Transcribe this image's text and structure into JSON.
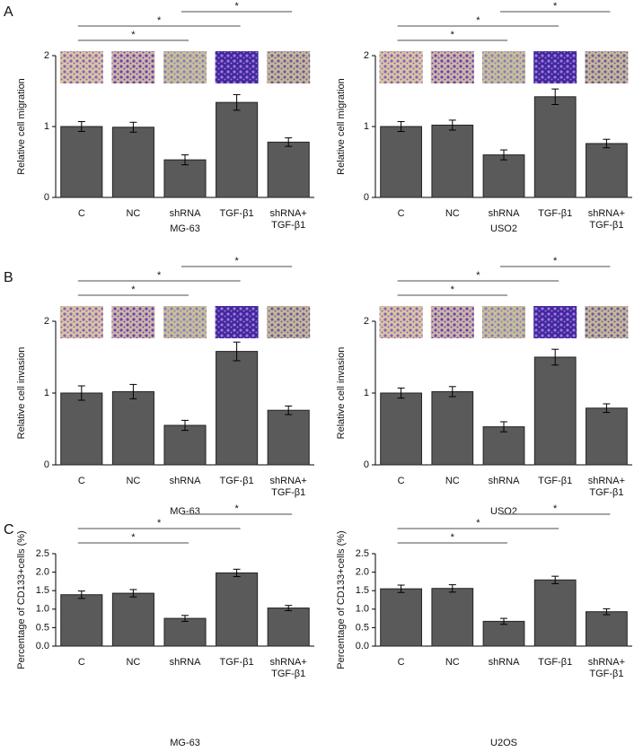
{
  "chart_data": [
    {
      "type": "bar",
      "panel_label": "A",
      "xlabel": "MG-63",
      "ylabel": "Relative cell migration",
      "categories": [
        "C",
        "NC",
        "shRNA",
        "TGF-β1",
        "shRNA+\nTGF-β1"
      ],
      "values": [
        1.0,
        0.99,
        0.53,
        1.34,
        0.78
      ],
      "errors": [
        0.07,
        0.07,
        0.07,
        0.11,
        0.06
      ],
      "color": "#5a5a5a",
      "ylim": [
        0,
        2
      ],
      "yticks": [
        0,
        1,
        2
      ],
      "annotations": [
        {
          "from": "C",
          "to": "shRNA",
          "label": "*"
        },
        {
          "from": "C",
          "to": "TGF-β1",
          "label": "*"
        },
        {
          "from": "shRNA",
          "to": "shRNA+\nTGF-β1",
          "label": "*"
        }
      ]
    },
    {
      "type": "bar",
      "xlabel": "USO2",
      "ylabel": "Relative cell migration",
      "categories": [
        "C",
        "NC",
        "shRNA",
        "TGF-β1",
        "shRNA+\nTGF-β1"
      ],
      "values": [
        1.0,
        1.02,
        0.6,
        1.42,
        0.76
      ],
      "errors": [
        0.07,
        0.07,
        0.07,
        0.11,
        0.06
      ],
      "color": "#5a5a5a",
      "ylim": [
        0,
        2
      ],
      "yticks": [
        0,
        1,
        2
      ],
      "annotations": [
        {
          "from": "C",
          "to": "shRNA",
          "label": "*"
        },
        {
          "from": "C",
          "to": "TGF-β1",
          "label": "*"
        },
        {
          "from": "shRNA",
          "to": "shRNA+\nTGF-β1",
          "label": "*"
        }
      ]
    },
    {
      "type": "bar",
      "panel_label": "B",
      "xlabel": "MG-63",
      "ylabel": "Relative cell invasion",
      "categories": [
        "C",
        "NC",
        "shRNA",
        "TGF-β1",
        "shRNA+\nTGF-β1"
      ],
      "values": [
        1.0,
        1.02,
        0.55,
        1.58,
        0.76
      ],
      "errors": [
        0.1,
        0.1,
        0.07,
        0.13,
        0.06
      ],
      "color": "#5a5a5a",
      "ylim": [
        0,
        2
      ],
      "yticks": [
        0,
        1,
        2
      ],
      "annotations": [
        {
          "from": "C",
          "to": "shRNA",
          "label": "*"
        },
        {
          "from": "C",
          "to": "TGF-β1",
          "label": "*"
        },
        {
          "from": "shRNA",
          "to": "shRNA+\nTGF-β1",
          "label": "*"
        }
      ]
    },
    {
      "type": "bar",
      "xlabel": "USO2",
      "ylabel": "Relative cell invasion",
      "categories": [
        "C",
        "NC",
        "shRNA",
        "TGF-β1",
        "shRNA+\nTGF-β1"
      ],
      "values": [
        1.0,
        1.02,
        0.53,
        1.5,
        0.79
      ],
      "errors": [
        0.07,
        0.07,
        0.07,
        0.11,
        0.06
      ],
      "color": "#5a5a5a",
      "ylim": [
        0,
        2
      ],
      "yticks": [
        0,
        1,
        2
      ],
      "annotations": [
        {
          "from": "C",
          "to": "shRNA",
          "label": "*"
        },
        {
          "from": "C",
          "to": "TGF-β1",
          "label": "*"
        },
        {
          "from": "shRNA",
          "to": "shRNA+\nTGF-β1",
          "label": "*"
        }
      ]
    },
    {
      "type": "bar",
      "panel_label": "C",
      "xlabel": "MG-63",
      "ylabel": "Percentage of CD133+cells (%)",
      "categories": [
        "C",
        "NC",
        "shRNA",
        "TGF-β1",
        "shRNA+\nTGF-β1"
      ],
      "values": [
        1.39,
        1.43,
        0.75,
        1.98,
        1.03
      ],
      "errors": [
        0.1,
        0.1,
        0.08,
        0.1,
        0.07
      ],
      "color": "#5a5a5a",
      "ylim": [
        0,
        2.5
      ],
      "yticks": [
        {
          "value": 0,
          "label": "0.0"
        },
        0.5,
        {
          "value": 1,
          "label": "1.0"
        },
        1.5,
        {
          "value": 2,
          "label": "2.0"
        },
        2.5
      ],
      "annotations": [
        {
          "from": "C",
          "to": "shRNA",
          "label": "*"
        },
        {
          "from": "C",
          "to": "TGF-β1",
          "label": "*"
        },
        {
          "from": "shRNA",
          "to": "shRNA+\nTGF-β1",
          "label": "*"
        }
      ]
    },
    {
      "type": "bar",
      "xlabel": "U2OS",
      "ylabel": "Percentage of CD133+cells (%)",
      "categories": [
        "C",
        "NC",
        "shRNA",
        "TGF-β1",
        "shRNA+\nTGF-β1"
      ],
      "values": [
        1.55,
        1.56,
        0.67,
        1.79,
        0.93
      ],
      "errors": [
        0.1,
        0.1,
        0.08,
        0.1,
        0.08
      ],
      "color": "#5a5a5a",
      "ylim": [
        0,
        2.5
      ],
      "yticks": [
        {
          "value": 0,
          "label": "0.0"
        },
        0.5,
        {
          "value": 1,
          "label": "1.0"
        },
        1.5,
        {
          "value": 2,
          "label": "2.0"
        },
        2.5
      ],
      "annotations": [
        {
          "from": "C",
          "to": "shRNA",
          "label": "*"
        },
        {
          "from": "C",
          "to": "TGF-β1",
          "label": "*"
        },
        {
          "from": "shRNA",
          "to": "shRNA+\nTGF-β1",
          "label": "*"
        }
      ]
    }
  ]
}
